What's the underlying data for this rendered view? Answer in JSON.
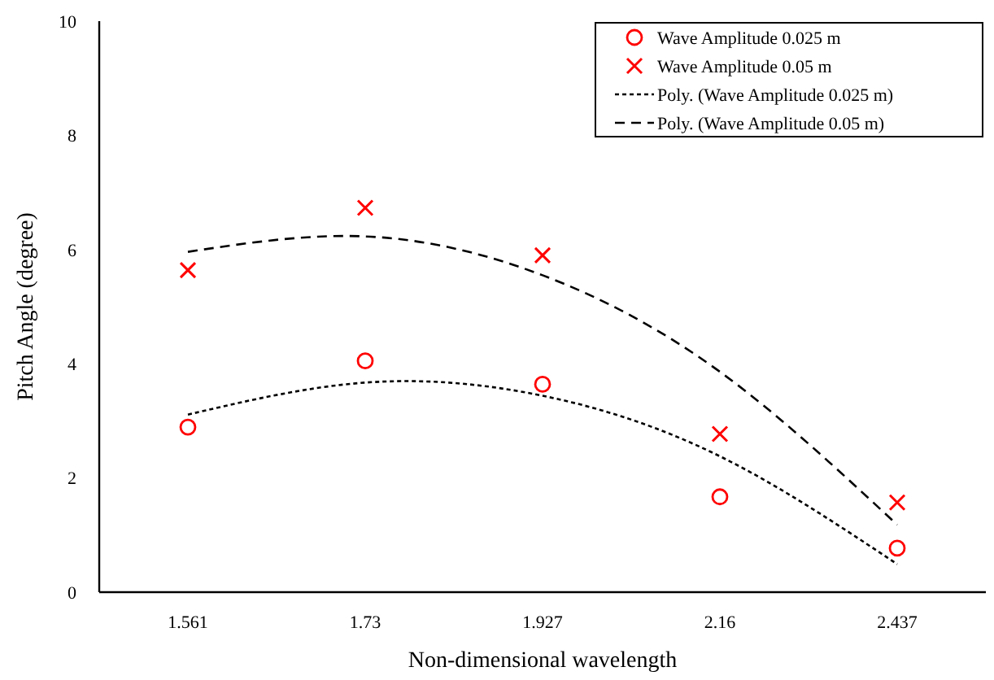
{
  "chart_data": {
    "type": "scatter",
    "xlabel": "Non-dimensional wavelength",
    "ylabel": "Pitch Angle (degree)",
    "categories": [
      "1.561",
      "1.73",
      "1.927",
      "2.16",
      "2.437"
    ],
    "ylim": [
      0,
      10
    ],
    "yticks": [
      0,
      2,
      4,
      6,
      8,
      10
    ],
    "grid": false,
    "legend": "top right",
    "series": [
      {
        "name": "Wave Amplitude 0.025 m",
        "marker": "circle",
        "color": "#ff0000",
        "values": [
          2.89,
          4.05,
          3.64,
          1.67,
          0.77
        ]
      },
      {
        "name": "Wave Amplitude 0.05 m",
        "marker": "cross",
        "color": "#ff0000",
        "values": [
          5.64,
          6.73,
          5.9,
          2.77,
          1.57
        ]
      },
      {
        "name": "Poly. (Wave Amplitude 0.025 m)",
        "type": "line",
        "marker": "none",
        "line_style": "dotted",
        "color": "#000000",
        "x": [
          "1.561",
          "1.73",
          "1.927",
          "2.16",
          "2.437"
        ],
        "values": [
          3.11,
          3.67,
          3.44,
          2.38,
          0.49
        ]
      },
      {
        "name": "Poly. (Wave Amplitude 0.05 m)",
        "type": "line",
        "marker": "none",
        "line_style": "dashed",
        "color": "#000000",
        "x": [
          "1.561",
          "1.73",
          "1.927",
          "2.16",
          "2.437"
        ],
        "values": [
          5.96,
          6.23,
          5.55,
          3.86,
          1.18
        ]
      }
    ]
  }
}
